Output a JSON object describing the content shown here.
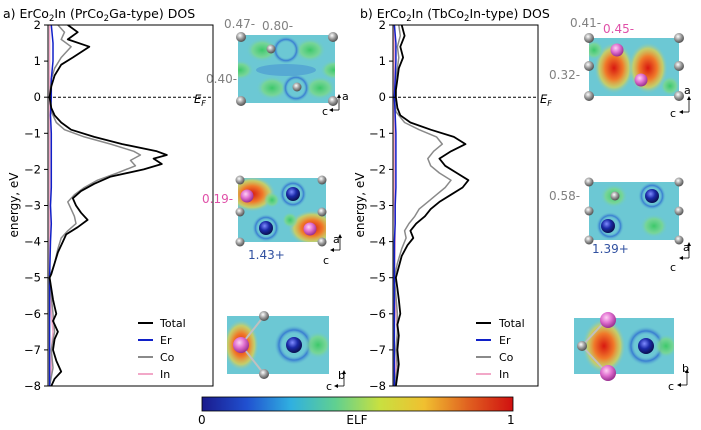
{
  "chart_data": [
    {
      "type": "line",
      "panel": "a",
      "title_label": "a)",
      "title_prefix": "ErCo",
      "title_sub": "2",
      "title_suffix": "In (PrCo",
      "title_sub2": "2",
      "title_suffix2": "Ga-type) DOS",
      "ylabel": "energy, eV",
      "ylim": [
        -8,
        2
      ],
      "yticks": [
        2,
        1,
        0,
        -1,
        -2,
        -3,
        -4,
        -5,
        -6,
        -7,
        -8
      ],
      "fermi_label": "E",
      "fermi_sub": "F",
      "legend": [
        "Total",
        "Er",
        "Co",
        "In"
      ],
      "series": [
        {
          "name": "Total",
          "color": "#000000",
          "points": [
            [
              2.0,
              0.12
            ],
            [
              1.8,
              0.18
            ],
            [
              1.6,
              0.12
            ],
            [
              1.4,
              0.25
            ],
            [
              1.1,
              0.15
            ],
            [
              0.9,
              0.08
            ],
            [
              0.6,
              0.04
            ],
            [
              0.3,
              0.02
            ],
            [
              0.0,
              0.01
            ],
            [
              -0.3,
              0.02
            ],
            [
              -0.5,
              0.04
            ],
            [
              -0.7,
              0.08
            ],
            [
              -0.9,
              0.14
            ],
            [
              -1.1,
              0.28
            ],
            [
              -1.3,
              0.45
            ],
            [
              -1.5,
              0.66
            ],
            [
              -1.6,
              0.72
            ],
            [
              -1.7,
              0.64
            ],
            [
              -1.85,
              0.69
            ],
            [
              -2.0,
              0.58
            ],
            [
              -2.2,
              0.38
            ],
            [
              -2.4,
              0.28
            ],
            [
              -2.6,
              0.2
            ],
            [
              -2.8,
              0.15
            ],
            [
              -3.0,
              0.17
            ],
            [
              -3.2,
              0.2
            ],
            [
              -3.4,
              0.24
            ],
            [
              -3.6,
              0.18
            ],
            [
              -3.8,
              0.11
            ],
            [
              -4.0,
              0.09
            ],
            [
              -4.3,
              0.06
            ],
            [
              -4.6,
              0.04
            ],
            [
              -4.9,
              0.02
            ],
            [
              -5.0,
              0.01
            ],
            [
              -5.3,
              0.02
            ],
            [
              -5.6,
              0.03
            ],
            [
              -5.8,
              0.04
            ],
            [
              -6.0,
              0.05
            ],
            [
              -6.2,
              0.03
            ],
            [
              -6.5,
              0.06
            ],
            [
              -6.7,
              0.04
            ],
            [
              -7.0,
              0.03
            ],
            [
              -7.3,
              0.05
            ],
            [
              -7.6,
              0.08
            ],
            [
              -7.8,
              0.04
            ],
            [
              -8.0,
              0.02
            ]
          ]
        },
        {
          "name": "Er",
          "color": "#1020c8",
          "points": [
            [
              2.0,
              0.02
            ],
            [
              1.5,
              0.03
            ],
            [
              1.0,
              0.03
            ],
            [
              0.5,
              0.02
            ],
            [
              0.0,
              0.02
            ],
            [
              -0.5,
              0.015
            ],
            [
              -1.0,
              0.02
            ],
            [
              -1.5,
              0.02
            ],
            [
              -2.0,
              0.02
            ],
            [
              -2.5,
              0.02
            ],
            [
              -3.0,
              0.015
            ],
            [
              -3.5,
              0.02
            ],
            [
              -4.0,
              0.015
            ],
            [
              -5.0,
              0.01
            ],
            [
              -6.0,
              0.01
            ],
            [
              -7.0,
              0.01
            ],
            [
              -8.0,
              0.01
            ]
          ]
        },
        {
          "name": "Co",
          "color": "#8a8a8a",
          "points": [
            [
              2.0,
              0.06
            ],
            [
              1.8,
              0.1
            ],
            [
              1.6,
              0.08
            ],
            [
              1.4,
              0.14
            ],
            [
              1.1,
              0.08
            ],
            [
              0.8,
              0.04
            ],
            [
              0.5,
              0.02
            ],
            [
              0.0,
              0.01
            ],
            [
              -0.4,
              0.02
            ],
            [
              -0.7,
              0.05
            ],
            [
              -0.9,
              0.1
            ],
            [
              -1.1,
              0.22
            ],
            [
              -1.3,
              0.38
            ],
            [
              -1.5,
              0.52
            ],
            [
              -1.6,
              0.56
            ],
            [
              -1.75,
              0.5
            ],
            [
              -1.9,
              0.53
            ],
            [
              -2.1,
              0.42
            ],
            [
              -2.3,
              0.3
            ],
            [
              -2.5,
              0.22
            ],
            [
              -2.7,
              0.16
            ],
            [
              -2.9,
              0.12
            ],
            [
              -3.1,
              0.14
            ],
            [
              -3.3,
              0.16
            ],
            [
              -3.5,
              0.17
            ],
            [
              -3.7,
              0.12
            ],
            [
              -3.9,
              0.08
            ],
            [
              -4.2,
              0.06
            ],
            [
              -4.6,
              0.04
            ],
            [
              -5.0,
              0.01
            ],
            [
              -5.5,
              0.02
            ],
            [
              -6.0,
              0.03
            ],
            [
              -6.5,
              0.04
            ],
            [
              -7.0,
              0.02
            ],
            [
              -7.5,
              0.03
            ],
            [
              -8.0,
              0.01
            ]
          ]
        },
        {
          "name": "In",
          "color": "#f2a8c8",
          "points": [
            [
              2.0,
              0.01
            ],
            [
              1.0,
              0.01
            ],
            [
              0.0,
              0.01
            ],
            [
              -1.0,
              0.01
            ],
            [
              -2.0,
              0.01
            ],
            [
              -3.0,
              0.01
            ],
            [
              -4.0,
              0.01
            ],
            [
              -5.0,
              0.01
            ],
            [
              -6.0,
              0.02
            ],
            [
              -6.5,
              0.03
            ],
            [
              -7.0,
              0.02
            ],
            [
              -7.5,
              0.02
            ],
            [
              -8.0,
              0.01
            ]
          ]
        }
      ]
    },
    {
      "type": "line",
      "panel": "b",
      "title_label": "b)",
      "title_prefix": "ErCo",
      "title_sub": "2",
      "title_suffix": "In (TbCo",
      "title_sub2": "2",
      "title_suffix2": "In-type) DOS",
      "ylabel": "energy, eV",
      "ylim": [
        -8,
        2
      ],
      "yticks": [
        2,
        1,
        0,
        -1,
        -2,
        -3,
        -4,
        -5,
        -6,
        -7,
        -8
      ],
      "fermi_label": "E",
      "fermi_sub": "F",
      "legend": [
        "Total",
        "Er",
        "Co",
        "In"
      ],
      "series": [
        {
          "name": "Total",
          "color": "#000000",
          "points": [
            [
              2.0,
              0.06
            ],
            [
              1.7,
              0.08
            ],
            [
              1.4,
              0.05
            ],
            [
              1.1,
              0.07
            ],
            [
              0.8,
              0.04
            ],
            [
              0.5,
              0.03
            ],
            [
              0.2,
              0.02
            ],
            [
              0.0,
              0.02
            ],
            [
              -0.3,
              0.03
            ],
            [
              -0.5,
              0.05
            ],
            [
              -0.7,
              0.12
            ],
            [
              -0.9,
              0.26
            ],
            [
              -1.1,
              0.42
            ],
            [
              -1.3,
              0.5
            ],
            [
              -1.5,
              0.4
            ],
            [
              -1.7,
              0.32
            ],
            [
              -1.9,
              0.36
            ],
            [
              -2.1,
              0.44
            ],
            [
              -2.3,
              0.52
            ],
            [
              -2.5,
              0.48
            ],
            [
              -2.7,
              0.4
            ],
            [
              -2.9,
              0.32
            ],
            [
              -3.1,
              0.26
            ],
            [
              -3.3,
              0.22
            ],
            [
              -3.5,
              0.16
            ],
            [
              -3.7,
              0.12
            ],
            [
              -3.9,
              0.14
            ],
            [
              -4.1,
              0.1
            ],
            [
              -4.4,
              0.06
            ],
            [
              -4.7,
              0.04
            ],
            [
              -5.0,
              0.02
            ],
            [
              -5.3,
              0.03
            ],
            [
              -5.6,
              0.04
            ],
            [
              -6.0,
              0.05
            ],
            [
              -6.3,
              0.03
            ],
            [
              -6.6,
              0.04
            ],
            [
              -7.0,
              0.03
            ],
            [
              -7.4,
              0.04
            ],
            [
              -7.7,
              0.03
            ],
            [
              -8.0,
              0.02
            ]
          ]
        },
        {
          "name": "Er",
          "color": "#1020c8",
          "points": [
            [
              2.0,
              0.01
            ],
            [
              1.5,
              0.02
            ],
            [
              1.0,
              0.02
            ],
            [
              0.5,
              0.015
            ],
            [
              0.0,
              0.01
            ],
            [
              -0.5,
              0.015
            ],
            [
              -1.0,
              0.02
            ],
            [
              -1.5,
              0.02
            ],
            [
              -2.0,
              0.02
            ],
            [
              -2.5,
              0.02
            ],
            [
              -3.0,
              0.015
            ],
            [
              -3.5,
              0.015
            ],
            [
              -4.0,
              0.01
            ],
            [
              -5.0,
              0.01
            ],
            [
              -6.0,
              0.01
            ],
            [
              -7.0,
              0.01
            ],
            [
              -8.0,
              0.01
            ]
          ]
        },
        {
          "name": "Co",
          "color": "#8a8a8a",
          "points": [
            [
              2.0,
              0.04
            ],
            [
              1.7,
              0.05
            ],
            [
              1.4,
              0.03
            ],
            [
              1.1,
              0.04
            ],
            [
              0.8,
              0.03
            ],
            [
              0.5,
              0.02
            ],
            [
              0.0,
              0.01
            ],
            [
              -0.4,
              0.02
            ],
            [
              -0.7,
              0.08
            ],
            [
              -0.9,
              0.18
            ],
            [
              -1.1,
              0.3
            ],
            [
              -1.3,
              0.34
            ],
            [
              -1.5,
              0.28
            ],
            [
              -1.7,
              0.24
            ],
            [
              -1.9,
              0.26
            ],
            [
              -2.1,
              0.32
            ],
            [
              -2.3,
              0.4
            ],
            [
              -2.5,
              0.36
            ],
            [
              -2.7,
              0.3
            ],
            [
              -2.9,
              0.24
            ],
            [
              -3.1,
              0.18
            ],
            [
              -3.3,
              0.15
            ],
            [
              -3.5,
              0.11
            ],
            [
              -3.7,
              0.08
            ],
            [
              -3.9,
              0.09
            ],
            [
              -4.2,
              0.06
            ],
            [
              -4.6,
              0.03
            ],
            [
              -5.0,
              0.01
            ],
            [
              -5.5,
              0.02
            ],
            [
              -6.0,
              0.03
            ],
            [
              -6.5,
              0.03
            ],
            [
              -7.0,
              0.02
            ],
            [
              -7.5,
              0.03
            ],
            [
              -8.0,
              0.01
            ]
          ]
        },
        {
          "name": "In",
          "color": "#f2a8c8",
          "points": [
            [
              2.0,
              0.01
            ],
            [
              1.0,
              0.01
            ],
            [
              0.0,
              0.01
            ],
            [
              -1.0,
              0.01
            ],
            [
              -2.0,
              0.01
            ],
            [
              -3.0,
              0.01
            ],
            [
              -4.0,
              0.015
            ],
            [
              -5.0,
              0.01
            ],
            [
              -6.0,
              0.02
            ],
            [
              -6.5,
              0.03
            ],
            [
              -7.0,
              0.025
            ],
            [
              -7.5,
              0.02
            ],
            [
              -8.0,
              0.01
            ]
          ]
        }
      ]
    }
  ],
  "elf_maps": {
    "a_top_labels": [
      "0.47-",
      "0.80-",
      "0.40-"
    ],
    "a_mid_labels": [
      "0.19-",
      "1.43+"
    ],
    "b_top_labels": [
      "0.41-",
      "0.45-",
      "0.32-"
    ],
    "b_mid_labels": [
      "0.58-",
      "1.39+"
    ],
    "axis_a": "a",
    "axis_b": "b",
    "axis_c": "c"
  },
  "colorbar": {
    "label": "ELF",
    "min_label": "0",
    "max_label": "1",
    "stops": [
      "#1a1a8c",
      "#2050d0",
      "#30b0e0",
      "#60d090",
      "#c8e040",
      "#f0c030",
      "#e06020",
      "#d01010"
    ]
  },
  "colors": {
    "elf_bg": "#6cc8d4",
    "elf_green": "#56d07c",
    "elf_red": "#e85a2c",
    "er_atom": "#1b2aa8",
    "in_atom": "#e070d0",
    "co_atom": "#9a9a9a",
    "label_gray": "#808080",
    "label_pink": "#e050a8",
    "label_blue": "#3050a0"
  }
}
